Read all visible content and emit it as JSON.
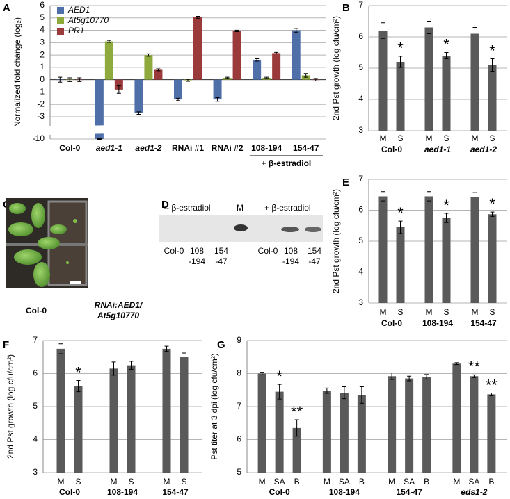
{
  "chart_data": [
    {
      "type": "bar",
      "panel": "A",
      "y_label": "Normalized fold change (log₂)",
      "categories": [
        "Col-0",
        "aed1-1",
        "aed1-2",
        "RNAi #1",
        "RNAi #2",
        "108-194",
        "154-47"
      ],
      "series": [
        {
          "name": "AED1",
          "color": "#4f6fa8",
          "values": [
            0,
            -10,
            -2.7,
            -1.6,
            -1.6,
            1.6,
            4.0
          ],
          "errors": [
            0.2,
            0.1,
            0.1,
            0.1,
            0.15,
            0.1,
            0.15
          ]
        },
        {
          "name": "At5g10770",
          "color": "#8faa3c",
          "values": [
            0,
            3.1,
            2.0,
            -0.05,
            0.15,
            0.15,
            0.35
          ],
          "errors": [
            0.15,
            0.08,
            0.1,
            0.08,
            0.05,
            0.05,
            0.15
          ]
        },
        {
          "name": "PR1",
          "color": "#9b3a3a",
          "values": [
            0,
            -0.8,
            0.8,
            5.05,
            3.95,
            2.15,
            0.0
          ],
          "errors": [
            0.15,
            0.3,
            0.08,
            0.08,
            0.06,
            0.06,
            0.1
          ]
        }
      ],
      "ylim": [
        -10,
        6
      ],
      "yticks": [
        -10,
        -3,
        -2,
        -1,
        0,
        1,
        2,
        3,
        4,
        5,
        6
      ],
      "axis_break": true,
      "grid": true,
      "legend": "top-left",
      "bracket": {
        "label": "+ β-estradiol",
        "from": "108-194",
        "to": "154-47"
      }
    },
    {
      "type": "bar",
      "panel": "B",
      "y_label": "2nd Pst growth (log cfu/cm²)",
      "color": "#5a5a5a",
      "categories": [
        "M",
        "S",
        "M",
        "S",
        "M",
        "S"
      ],
      "group_labels": [
        "Col-0",
        "aed1-1",
        "aed1-2"
      ],
      "values": [
        6.2,
        5.2,
        6.3,
        5.4,
        6.1,
        5.1
      ],
      "errors": [
        0.25,
        0.18,
        0.2,
        0.1,
        0.2,
        0.2
      ],
      "ylim": [
        3,
        7
      ],
      "yticks": [
        3,
        4,
        5,
        6,
        7
      ],
      "grid": true,
      "annotations": [
        {
          "at": 1,
          "text": "*"
        },
        {
          "at": 3,
          "text": "*"
        },
        {
          "at": 5,
          "text": "*"
        }
      ]
    },
    {
      "type": "bar",
      "panel": "E",
      "y_label": "2nd Pst growth (log cfu/cm²)",
      "color": "#5a5a5a",
      "categories": [
        "M",
        "S",
        "M",
        "S",
        "M",
        "S"
      ],
      "group_labels": [
        "Col-0",
        "108-194",
        "154-47"
      ],
      "values": [
        6.45,
        5.45,
        6.45,
        5.75,
        6.42,
        5.87
      ],
      "errors": [
        0.15,
        0.2,
        0.15,
        0.15,
        0.15,
        0.07
      ],
      "ylim": [
        3,
        7
      ],
      "yticks": [
        3,
        4,
        5,
        6,
        7
      ],
      "grid": true,
      "annotations": [
        {
          "at": 1,
          "text": "*"
        },
        {
          "at": 3,
          "text": "*"
        },
        {
          "at": 5,
          "text": "*"
        }
      ]
    },
    {
      "type": "bar",
      "panel": "F",
      "y_label": "2nd Pst growth (log cfu/cm²)",
      "color": "#5a5a5a",
      "categories": [
        "M",
        "S",
        "M",
        "S",
        "M",
        "S"
      ],
      "group_labels": [
        "Col-0",
        "108-194",
        "154-47"
      ],
      "values": [
        6.75,
        5.62,
        6.15,
        6.25,
        6.75,
        6.5
      ],
      "errors": [
        0.15,
        0.17,
        0.2,
        0.12,
        0.08,
        0.12
      ],
      "ylim": [
        3,
        7
      ],
      "yticks": [
        3,
        4,
        5,
        6,
        7
      ],
      "grid": true,
      "annotations": [
        {
          "at": 1,
          "text": "*"
        }
      ]
    },
    {
      "type": "bar",
      "panel": "G",
      "y_label": "Pst titer at 3 dpi (log cfu/cm²)",
      "color": "#5a5a5a",
      "categories": [
        "M",
        "SA",
        "B",
        "M",
        "SA",
        "B",
        "M",
        "SA",
        "B",
        "M",
        "SA",
        "B"
      ],
      "group_labels": [
        "Col-0",
        "108-194",
        "154-47",
        "eds1-2"
      ],
      "values": [
        8.0,
        7.45,
        6.35,
        7.48,
        7.42,
        7.35,
        7.92,
        7.85,
        7.9,
        8.3,
        7.92,
        7.37
      ],
      "errors": [
        0.04,
        0.22,
        0.25,
        0.08,
        0.18,
        0.25,
        0.1,
        0.07,
        0.07,
        0.03,
        0.04,
        0.04
      ],
      "ylim": [
        5,
        9
      ],
      "yticks": [
        5,
        6,
        7,
        8,
        9
      ],
      "grid": true,
      "annotations": [
        {
          "at": 1,
          "text": "*"
        },
        {
          "at": 2,
          "text": "**"
        },
        {
          "at": 10,
          "text": "**"
        },
        {
          "at": 11,
          "text": "**"
        }
      ]
    }
  ],
  "photo": {
    "panel": "C",
    "left_caption": "Col-0",
    "right_caption": [
      "RNAi:AED1/",
      "At5g10770"
    ]
  },
  "blot": {
    "panel": "D",
    "minus_header": "-- β-estradiol",
    "marker": "M",
    "plus_header": "+ β-estradiol",
    "lanes": [
      [
        "Col-0"
      ],
      [
        "108",
        "-194"
      ],
      [
        "154",
        "-47"
      ],
      [
        "Col-0"
      ],
      [
        "108",
        "-194"
      ],
      [
        "154",
        "-47"
      ]
    ]
  }
}
